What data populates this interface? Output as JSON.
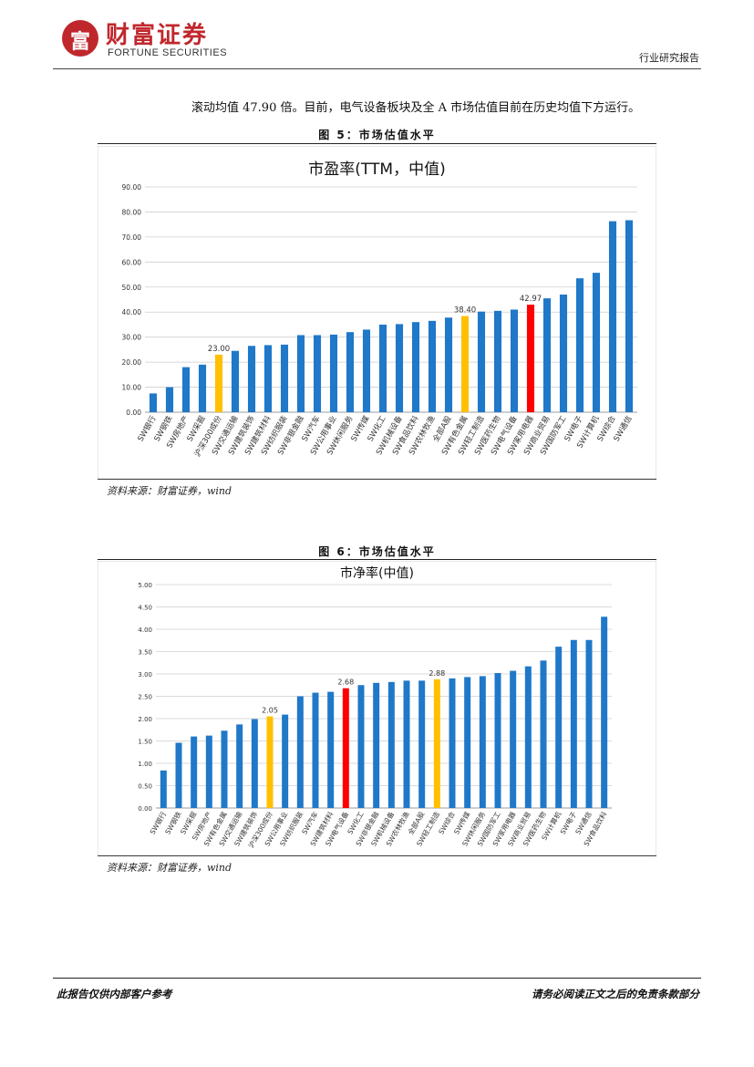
{
  "header": {
    "logo_cn": "财富证券",
    "logo_en": "FORTUNE SECURITIES",
    "logo_mark_text": "富",
    "report_type": "行业研究报告"
  },
  "body_text": "滚动均值 47.90 倍。目前，电气设备板块及全 A 市场估值目前在历史均值下方运行。",
  "figure5": {
    "caption": "图 5：市场估值水平",
    "source": "资料来源：财富证券，wind"
  },
  "figure6": {
    "caption": "图 6：市场估值水平",
    "source": "资料来源：财富证券，wind"
  },
  "footer": {
    "left": "此报告仅供内部客户参考",
    "right": "请务必阅读正文之后的免责条款部分"
  },
  "colors": {
    "blue": "#1f78c8",
    "yellow": "#ffc000",
    "red": "#ff0000",
    "brand": "#c0272d"
  },
  "chart_data": [
    {
      "type": "bar",
      "title": "市盈率(TTM，中值)",
      "ylim": [
        0,
        90
      ],
      "yticks": [
        "0.00",
        "10.00",
        "20.00",
        "30.00",
        "40.00",
        "50.00",
        "60.00",
        "70.00",
        "80.00",
        "90.00"
      ],
      "yticks_values": [
        0,
        10,
        20,
        30,
        40,
        50,
        60,
        70,
        80,
        90
      ],
      "categories": [
        "SW银行",
        "SW钢铁",
        "SW房地产",
        "SW采掘",
        "沪深300成份",
        "SW交通运输",
        "SW建筑装饰",
        "SW建筑材料",
        "SW纺织服装",
        "SW非银金融",
        "SW汽车",
        "SW公用事业",
        "SW休闲服务",
        "SW传媒",
        "SW化工",
        "SW机械设备",
        "SW食品饮料",
        "SW农林牧渔",
        "全部A股",
        "SW有色金属",
        "SW轻工制造",
        "SW医药生物",
        "SW电气设备",
        "SW家用电器",
        "SW商业贸易",
        "SW国防军工",
        "SW电子",
        "SW计算机",
        "SW综合",
        "SW通信"
      ],
      "values": [
        7.5,
        10,
        18,
        19,
        23.0,
        24.5,
        26.5,
        26.8,
        27,
        30.8,
        30.8,
        31,
        32,
        33,
        35,
        35.2,
        36,
        36.5,
        37.8,
        38.4,
        40.2,
        40.5,
        41,
        42.97,
        45.5,
        47,
        53.5,
        55.7,
        76.3,
        76.7
      ],
      "highlights": {
        "4": "yellow",
        "19": "yellow",
        "23": "red"
      },
      "data_labels": {
        "4": "23.00",
        "19": "38.40",
        "23": "42.97"
      }
    },
    {
      "type": "bar",
      "title": "市净率(中值)",
      "ylim": [
        0,
        5
      ],
      "yticks": [
        "0.00",
        "0.50",
        "1.00",
        "1.50",
        "2.00",
        "2.50",
        "3.00",
        "3.50",
        "4.00",
        "4.50",
        "5.00"
      ],
      "yticks_values": [
        0,
        0.5,
        1,
        1.5,
        2,
        2.5,
        3,
        3.5,
        4,
        4.5,
        5
      ],
      "categories": [
        "SW银行",
        "SW钢铁",
        "SW采掘",
        "SW房地产",
        "SW有色金属",
        "SW交通运输",
        "SW建筑装饰",
        "沪深300成份",
        "SW公用事业",
        "SW纺织服装",
        "SW汽车",
        "SW建筑材料",
        "SW电气设备",
        "SW化工",
        "SW非银金融",
        "SW机械设备",
        "SW农林牧渔",
        "全部A股",
        "SW轻工制造",
        "SW综合",
        "SW传媒",
        "SW休闲服务",
        "SW国防军工",
        "SW家用电器",
        "SW商业贸易",
        "SW医药生物",
        "SW计算机",
        "SW电子",
        "SW通信",
        "SW食品饮料"
      ],
      "values": [
        0.84,
        1.46,
        1.6,
        1.62,
        1.73,
        1.87,
        1.99,
        2.05,
        2.09,
        2.5,
        2.58,
        2.6,
        2.68,
        2.75,
        2.8,
        2.82,
        2.85,
        2.85,
        2.88,
        2.9,
        2.93,
        2.95,
        3.02,
        3.07,
        3.17,
        3.3,
        3.61,
        3.76,
        3.76,
        4.28
      ],
      "highlights": {
        "7": "yellow",
        "12": "red",
        "18": "yellow"
      },
      "data_labels": {
        "7": "2.05",
        "12": "2.68",
        "18": "2.88"
      }
    }
  ]
}
